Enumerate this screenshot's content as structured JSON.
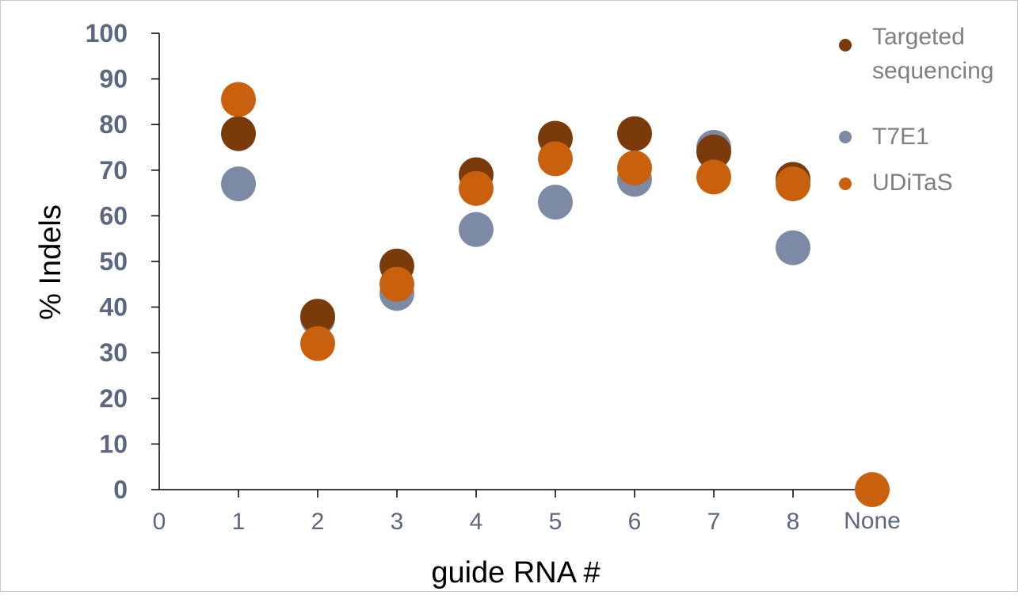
{
  "chart_data": {
    "type": "scatter",
    "title": "",
    "xlabel": "guide RNA #",
    "ylabel": "% Indels",
    "x_ticks": [
      "0",
      "1",
      "2",
      "3",
      "4",
      "5",
      "6",
      "7",
      "8",
      "None"
    ],
    "y_ticks": [
      "0",
      "10",
      "20",
      "30",
      "40",
      "50",
      "60",
      "70",
      "80",
      "90",
      "100"
    ],
    "xlim": [
      0,
      9
    ],
    "ylim": [
      0,
      100
    ],
    "grid": false,
    "legend_position": "top-right",
    "series": [
      {
        "name": "Targeted sequencing",
        "legend_lines": [
          "Targeted",
          "sequencing"
        ],
        "color": "#7b3a0a",
        "points": [
          {
            "x": 1,
            "y": 78
          },
          {
            "x": 2,
            "y": 38
          },
          {
            "x": 3,
            "y": 49
          },
          {
            "x": 4,
            "y": 69
          },
          {
            "x": 5,
            "y": 77
          },
          {
            "x": 6,
            "y": 78
          },
          {
            "x": 7,
            "y": 74
          },
          {
            "x": 8,
            "y": 68
          }
        ]
      },
      {
        "name": "T7E1",
        "legend_lines": [
          "T7E1"
        ],
        "color": "#7d8aa5",
        "points": [
          {
            "x": 1,
            "y": 67
          },
          {
            "x": 2,
            "y": 37.5
          },
          {
            "x": 3,
            "y": 43
          },
          {
            "x": 4,
            "y": 57
          },
          {
            "x": 5,
            "y": 63
          },
          {
            "x": 6,
            "y": 68
          },
          {
            "x": 7,
            "y": 75
          },
          {
            "x": 8,
            "y": 53
          }
        ]
      },
      {
        "name": "UDiTaS",
        "legend_lines": [
          "UDiTaS"
        ],
        "color": "#c8600e",
        "points": [
          {
            "x": 1,
            "y": 85.5
          },
          {
            "x": 2,
            "y": 32
          },
          {
            "x": 3,
            "y": 45
          },
          {
            "x": 4,
            "y": 66
          },
          {
            "x": 5,
            "y": 72.5
          },
          {
            "x": 6,
            "y": 70.5
          },
          {
            "x": 7,
            "y": 68.5
          },
          {
            "x": 8,
            "y": 67
          },
          {
            "x": 9,
            "y": 0
          }
        ]
      }
    ],
    "colors": {
      "axis": "#000000",
      "y_tick_label": "#5b6880",
      "x_tick_label": "#5b6880",
      "axis_title": "#000000",
      "legend_text": "#7f7f7f"
    }
  }
}
